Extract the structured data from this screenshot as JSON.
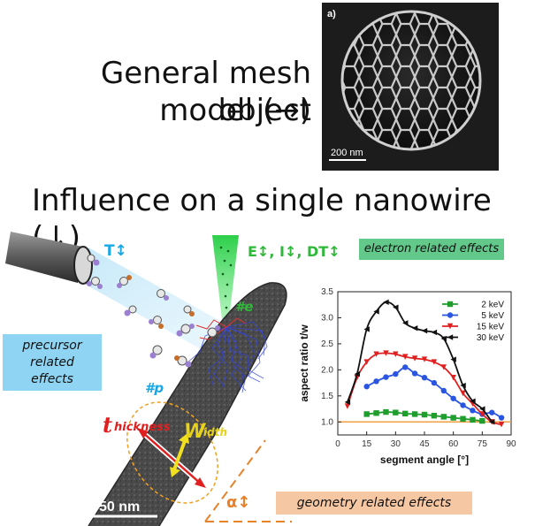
{
  "headline": {
    "line1": "General mesh object",
    "line2": "model (→)",
    "line3": "Influence on a single nanowire (↓)"
  },
  "sem_image": {
    "panel_label": "a)",
    "scalebar_label": "200 nm"
  },
  "labels": {
    "temperature": "T↕",
    "beam_params": "E↕, I↕, DT↕",
    "electrons": "#e",
    "precursors": "#p",
    "thickness_prefix": "t",
    "thickness_suffix": "hickness",
    "width_prefix": "W",
    "width_suffix": "idth",
    "angle": "α↕",
    "scalebar": "50 nm"
  },
  "boxes": {
    "precursor": [
      "precursor",
      "related",
      "effects"
    ],
    "electron": "electron related effects",
    "geometry": "geometry related effects"
  },
  "colors": {
    "cyan_label": "#1aa7e6",
    "green_label": "#3aa63a",
    "red_label": "#e02020",
    "yellow_label": "#e6d21a",
    "orange_label": "#e87a2a"
  },
  "chart_data": {
    "type": "line",
    "xlabel": "segment angle [°]",
    "ylabel": "aspect ratio t/w",
    "xlim": [
      0,
      90
    ],
    "ylim": [
      0.75,
      3.5
    ],
    "xticks": [
      0,
      15,
      30,
      45,
      60,
      75,
      90
    ],
    "yticks": [
      1.0,
      1.5,
      2.0,
      2.5,
      3.0,
      3.5
    ],
    "reference_line": 1.0,
    "legend_position": "top-right",
    "series": [
      {
        "name": "2 keV",
        "color": "#1f9e2e",
        "marker": "square",
        "x": [
          15,
          20,
          25,
          30,
          35,
          40,
          45,
          50,
          55,
          60,
          65,
          70,
          75
        ],
        "y": [
          1.15,
          1.17,
          1.19,
          1.18,
          1.16,
          1.15,
          1.14,
          1.12,
          1.1,
          1.08,
          1.06,
          1.04,
          1.02
        ]
      },
      {
        "name": "5 keV",
        "color": "#2a55e0",
        "marker": "circle",
        "x": [
          15,
          20,
          25,
          30,
          35,
          40,
          45,
          50,
          55,
          60,
          65,
          70,
          75,
          80,
          85
        ],
        "y": [
          1.68,
          1.78,
          1.86,
          1.92,
          2.05,
          1.93,
          1.85,
          1.75,
          1.6,
          1.45,
          1.32,
          1.22,
          1.15,
          1.18,
          1.08
        ]
      },
      {
        "name": "15 keV",
        "color": "#e02020",
        "marker": "triangle-down",
        "x": [
          5,
          10,
          15,
          20,
          25,
          30,
          35,
          40,
          45,
          50,
          55,
          60,
          65,
          70,
          75,
          80,
          85
        ],
        "y": [
          1.3,
          1.85,
          2.15,
          2.3,
          2.32,
          2.3,
          2.25,
          2.22,
          2.2,
          2.15,
          2.05,
          1.85,
          1.55,
          1.35,
          1.15,
          1.0,
          0.95
        ]
      },
      {
        "name": "30 keV",
        "color": "#111111",
        "marker": "triangle-left",
        "x": [
          5,
          10,
          15,
          20,
          25,
          30,
          35,
          40,
          45,
          50,
          55,
          60,
          65,
          70,
          75,
          80
        ],
        "y": [
          1.38,
          1.92,
          2.78,
          3.12,
          3.3,
          3.2,
          2.9,
          2.8,
          2.75,
          2.72,
          2.6,
          2.2,
          1.7,
          1.4,
          1.25,
          1.0
        ]
      }
    ]
  }
}
